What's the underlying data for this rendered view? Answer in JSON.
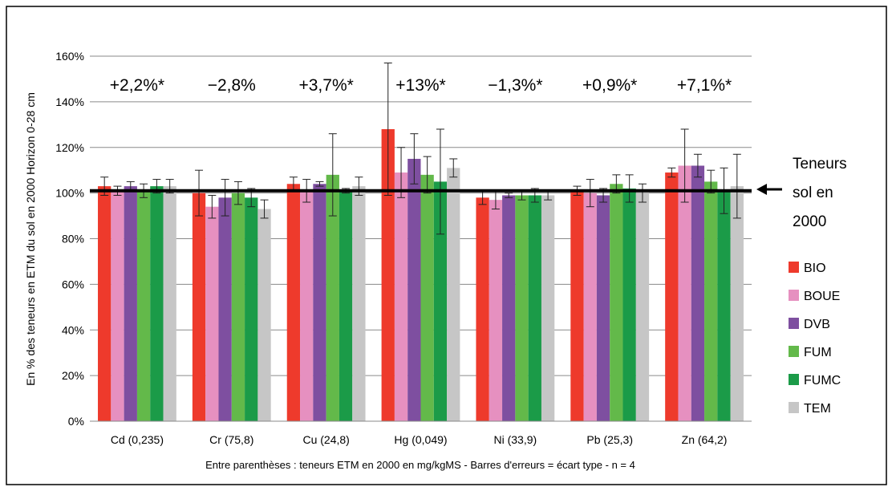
{
  "chart_data": {
    "type": "bar",
    "ylabel": "En % des teneurs en ETM du sol en 2000   Horizon 0-28 cm",
    "footnote": "Entre parenthèses : teneurs ETM en 2000 en mg/kgMS - Barres d'erreurs = écart type - n = 4",
    "ylim": [
      0,
      160
    ],
    "yticks": [
      "0%",
      "20%",
      "40%",
      "60%",
      "80%",
      "100%",
      "120%",
      "140%",
      "160%"
    ],
    "grid": true,
    "legend_position": "right",
    "categories": [
      "Cd (0,235)",
      "Cr (75,8)",
      "Cu (24,8)",
      "Hg (0,049)",
      "Ni (33,9)",
      "Pb (25,3)",
      "Zn (64,2)"
    ],
    "annotations": [
      "+2,2%*",
      "−2,8%",
      "+3,7%*",
      "+13%*",
      "−1,3%*",
      "+0,9%*",
      "+7,1%*"
    ],
    "reference": {
      "value": 101,
      "label_lines": [
        "Teneurs",
        "sol en",
        "2000"
      ]
    },
    "series": [
      {
        "name": "BIO",
        "color": "#ee3a2c",
        "values": [
          103,
          100,
          104,
          128,
          98,
          101,
          109
        ],
        "errors": [
          4,
          10,
          3,
          29,
          3,
          2,
          2
        ]
      },
      {
        "name": "BOUE",
        "color": "#e690c0",
        "values": [
          101,
          94,
          101,
          109,
          97,
          100,
          112
        ],
        "errors": [
          2,
          5,
          5,
          11,
          4,
          6,
          16
        ]
      },
      {
        "name": "DVB",
        "color": "#7e4fa0",
        "values": [
          103,
          98,
          104,
          115,
          99,
          99,
          112
        ],
        "errors": [
          2,
          8,
          1,
          11,
          1,
          3,
          5
        ]
      },
      {
        "name": "FUM",
        "color": "#63b94a",
        "values": [
          101,
          100,
          108,
          108,
          99,
          104,
          105
        ],
        "errors": [
          3,
          5,
          18,
          8,
          2,
          4,
          5
        ]
      },
      {
        "name": "FUMC",
        "color": "#1b9b48",
        "values": [
          103,
          98,
          101,
          105,
          99,
          102,
          101
        ],
        "errors": [
          3,
          4,
          1,
          23,
          3,
          6,
          10
        ]
      },
      {
        "name": "TEM",
        "color": "#c6c6c6",
        "values": [
          103,
          93,
          103,
          111,
          99,
          100,
          103
        ],
        "errors": [
          3,
          4,
          4,
          4,
          2,
          4,
          14
        ]
      }
    ]
  }
}
